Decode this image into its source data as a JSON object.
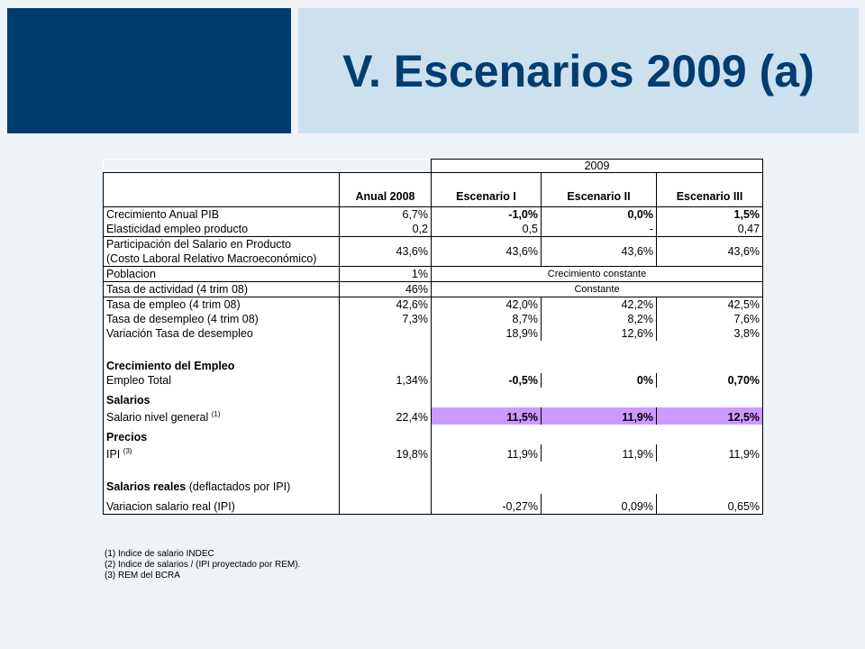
{
  "header": {
    "title": "V. Escenarios 2009 (a)"
  },
  "table": {
    "year_label": "2009",
    "col_headers": [
      "Anual 2008",
      "Escenario I",
      "Escenario II",
      "Escenario III"
    ],
    "rows": {
      "crecimiento_pib": {
        "label": "Crecimiento Anual PIB",
        "v": [
          "6,7%",
          "-1,0%",
          "0,0%",
          "1,5%"
        ]
      },
      "elasticidad": {
        "label": "Elasticidad empleo producto",
        "v": [
          "0,2",
          "0,5",
          "-",
          "0,47"
        ]
      },
      "participacion": {
        "label1": "Participación del Salario en Producto",
        "label2": "(Costo Laboral Relativo Macroeconómico)",
        "v": [
          "43,6%",
          "43,6%",
          "43,6%",
          "43,6%"
        ]
      },
      "poblacion": {
        "label": "Poblacion",
        "v2008": "1%",
        "span": "Crecimiento constante"
      },
      "tasa_actividad": {
        "label": "Tasa de actividad  (4 trim 08)",
        "v2008": "46%",
        "span": "Constante"
      },
      "tasa_empleo": {
        "label": "Tasa de empleo (4 trim 08)",
        "v": [
          "42,6%",
          "42,0%",
          "42,2%",
          "42,5%"
        ]
      },
      "tasa_desempleo": {
        "label": "Tasa de desempleo (4 trim 08)",
        "v": [
          "7,3%",
          "8,7%",
          "8,2%",
          "7,6%"
        ]
      },
      "variacion_desempleo": {
        "label": "Variación Tasa de desempleo",
        "v": [
          "",
          "18,9%",
          "12,6%",
          "3,8%"
        ]
      },
      "sec_empleo": {
        "label": "Crecimiento del Empleo"
      },
      "empleo_total": {
        "label": "Empleo Total",
        "v": [
          "1,34%",
          "-0,5%",
          "0%",
          "0,70%"
        ]
      },
      "sec_salarios": {
        "label": "Salarios"
      },
      "salario_nivel": {
        "label": "Salario nivel general",
        "note": "(1)",
        "v": [
          "22,4%",
          "11,5%",
          "11,9%",
          "12,5%"
        ]
      },
      "sec_precios": {
        "label": "Precios"
      },
      "ipi": {
        "label": "IPI",
        "note": "(3)",
        "v": [
          "19,8%",
          "11,9%",
          "11,9%",
          "11,9%"
        ]
      },
      "sec_reales": {
        "label": "Salarios reales",
        "sub": "(deflactados por IPI)"
      },
      "variacion_salario": {
        "label": "Variacion salario real (IPI)",
        "v": [
          "",
          "-0,27%",
          "0,09%",
          "0,65%"
        ]
      }
    }
  },
  "notes": [
    "(1) Indice de salario INDEC",
    "(2) Indice de salarios / (IPI proyectado por REM).",
    "(3) REM del BCRA"
  ],
  "colors": {
    "header_dark": "#003d70",
    "header_light": "#cde0ee",
    "highlight": "#cc99ff",
    "background": "#eef3f7"
  }
}
